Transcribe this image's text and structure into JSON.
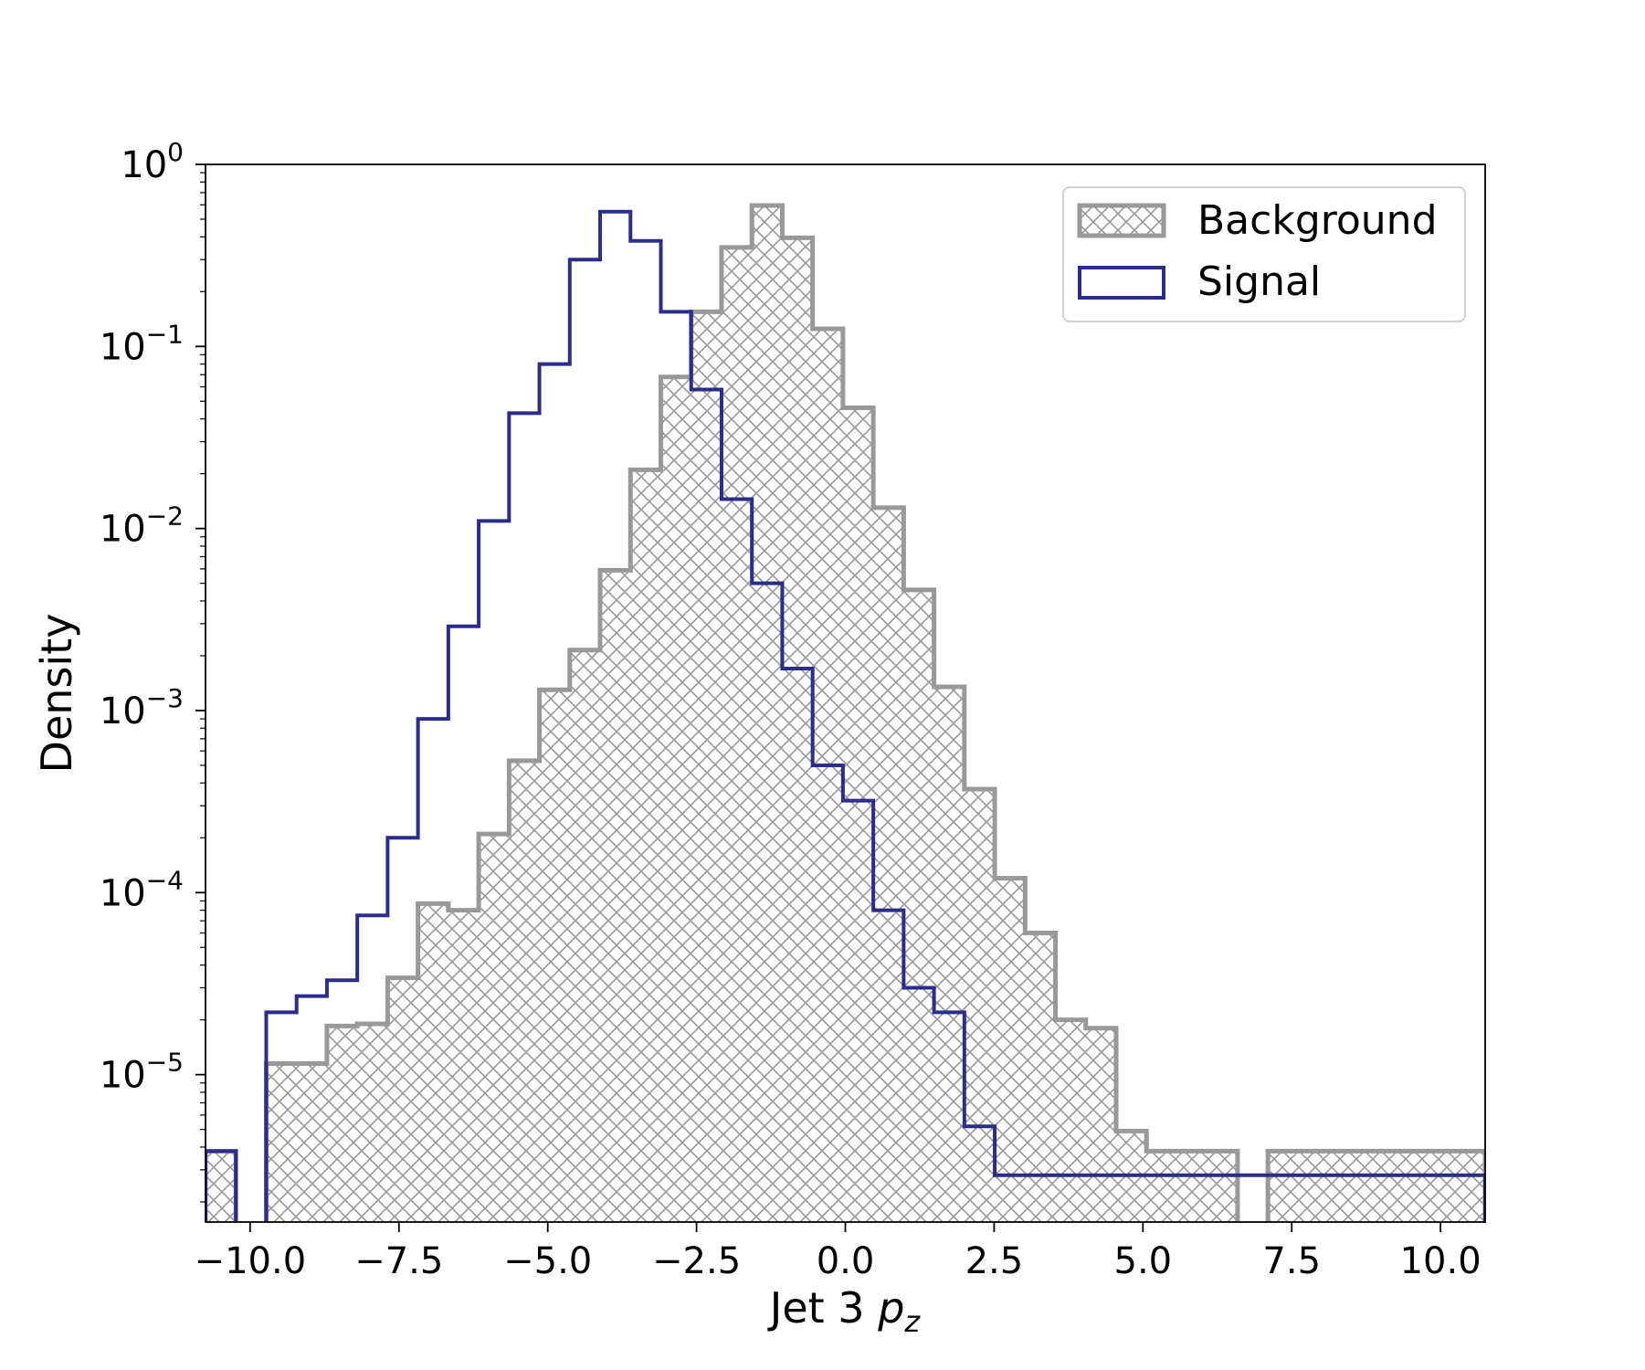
{
  "chart_data": {
    "type": "histogram",
    "xlabel": "Jet 3 ",
    "xlabel_math": "p",
    "xlabel_sub": "z",
    "ylabel": "Density",
    "xlim": [
      -10.75,
      10.75
    ],
    "ylim": [
      1.55e-06,
      1.0
    ],
    "yscale": "log",
    "grid": false,
    "legend_position": "top-right",
    "x_ticks": [
      -10,
      -7.5,
      -5,
      -2.5,
      0,
      2.5,
      5,
      7.5,
      10
    ],
    "x_tick_labels": [
      "−10.0",
      "−7.5",
      "−5.0",
      "−2.5",
      "0.0",
      "2.5",
      "5.0",
      "7.5",
      "10.0"
    ],
    "y_ticks": [
      1e-05,
      0.0001,
      0.001,
      0.01,
      0.1,
      1
    ],
    "y_tick_bases": [
      "10",
      "10",
      "10",
      "10",
      "10",
      "10"
    ],
    "y_tick_exps": [
      "−5",
      "−4",
      "−3",
      "−2",
      "−1",
      "0"
    ],
    "bin_edges": [
      -10.75,
      -10.24,
      -9.73,
      -9.22,
      -8.71,
      -8.2,
      -7.69,
      -7.18,
      -6.67,
      -6.16,
      -5.65,
      -5.14,
      -4.63,
      -4.12,
      -3.61,
      -3.1,
      -2.59,
      -2.08,
      -1.57,
      -1.06,
      -0.55,
      -0.04,
      0.47,
      0.98,
      1.49,
      2.0,
      2.51,
      3.02,
      3.53,
      4.04,
      4.55,
      5.06,
      5.57,
      6.08,
      6.59,
      7.1,
      7.61,
      8.12,
      8.63,
      9.14,
      9.65,
      10.16,
      10.67,
      10.75
    ],
    "series": [
      {
        "name": "Background",
        "style": "hatched",
        "color": "#999999",
        "values": [
          3.8e-06,
          0,
          1.15e-05,
          1.15e-05,
          1.85e-05,
          1.9e-05,
          3.4e-05,
          8.7e-05,
          8e-05,
          0.00021,
          0.00053,
          0.0013,
          0.00215,
          0.0059,
          0.021,
          0.068,
          0.155,
          0.35,
          0.595,
          0.395,
          0.125,
          0.046,
          0.013,
          0.0046,
          0.00135,
          0.00037,
          0.00012,
          6e-05,
          2e-05,
          1.8e-05,
          4.9e-06,
          3.8e-06,
          3.8e-06,
          3.8e-06,
          0,
          3.8e-06,
          3.8e-06,
          3.8e-06,
          3.8e-06,
          3.8e-06,
          3.8e-06,
          3.8e-06,
          3.8e-06
        ]
      },
      {
        "name": "Signal",
        "style": "step",
        "color": "#2b2d8a",
        "values": [
          3.8e-06,
          0,
          2.2e-05,
          2.7e-05,
          3.3e-05,
          7.5e-05,
          0.0002,
          0.0009,
          0.0029,
          0.011,
          0.043,
          0.08,
          0.3,
          0.55,
          0.38,
          0.155,
          0.058,
          0.0145,
          0.005,
          0.0017,
          0.0005,
          0.00032,
          8e-05,
          3e-05,
          2.2e-05,
          5.2e-06,
          2.8e-06,
          2.8e-06,
          2.8e-06,
          2.8e-06,
          2.8e-06,
          2.8e-06,
          2.8e-06,
          2.8e-06,
          2.8e-06,
          2.8e-06,
          2.8e-06,
          2.8e-06,
          2.8e-06,
          2.8e-06,
          2.8e-06,
          2.8e-06,
          2.8e-06
        ]
      }
    ]
  }
}
